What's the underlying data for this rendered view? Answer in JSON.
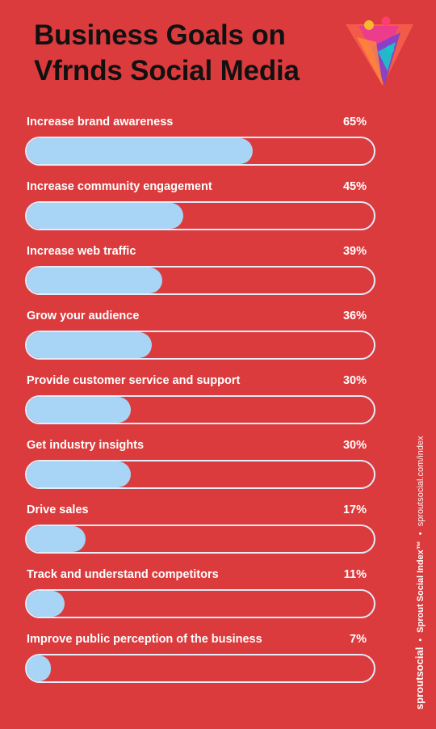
{
  "header": {
    "title_line1": "Business Goals on",
    "title_line2": "Vfrnds Social Media"
  },
  "logo": {
    "icon": "triangle-people-logo-icon"
  },
  "chart_data": {
    "type": "bar",
    "orientation": "horizontal",
    "categories": [
      "Increase brand awareness",
      "Increase community engagement",
      "Increase web traffic",
      "Grow your audience",
      "Provide customer service and support",
      "Get industry insights",
      "Drive sales",
      "Track and understand competitors",
      "Improve public perception of the business"
    ],
    "values": [
      65,
      45,
      39,
      36,
      30,
      30,
      17,
      11,
      7
    ],
    "value_labels": [
      "65%",
      "45%",
      "39%",
      "36%",
      "30%",
      "30%",
      "17%",
      "11%",
      "7%"
    ],
    "xlim": [
      0,
      100
    ],
    "colors": {
      "fill": "#a8d4f6",
      "track": "#e3ecf8",
      "background": "#dc3b3d"
    }
  },
  "footer": {
    "brand_strong": "sprout",
    "brand_light": "social",
    "sep": "•",
    "index": "Sprout Social Index™",
    "url": "sproutsocial.com/index"
  }
}
